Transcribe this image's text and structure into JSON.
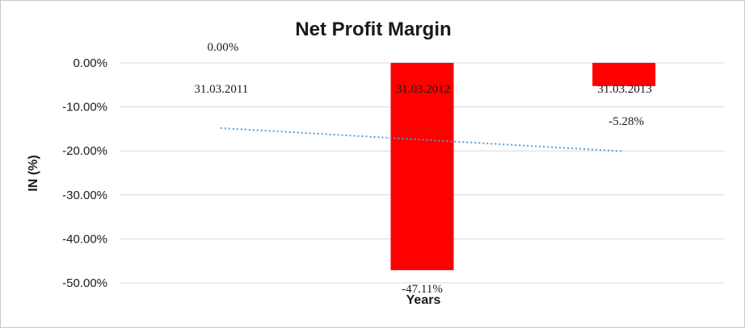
{
  "chart_data": {
    "type": "bar",
    "title": "Net Profit Margin",
    "xlabel": "Years",
    "ylabel": "IN (%)",
    "categories": [
      "31.03.2011",
      "31.03.2012",
      "31.03.2013"
    ],
    "series": [
      {
        "values": [
          0.0,
          -47.11,
          -5.28
        ],
        "data_labels": [
          "0.00%",
          "-47.11%",
          "-5.28%"
        ],
        "color": "#ff0000"
      }
    ],
    "trendline": {
      "type": "linear",
      "style": "dotted",
      "color": "#5b9bd5"
    },
    "ylim": [
      -50,
      0
    ],
    "yticks": [
      "0.00%",
      "-10.00%",
      "-20.00%",
      "-30.00%",
      "-40.00%",
      "-50.00%"
    ],
    "grid": true,
    "legend": "none"
  }
}
